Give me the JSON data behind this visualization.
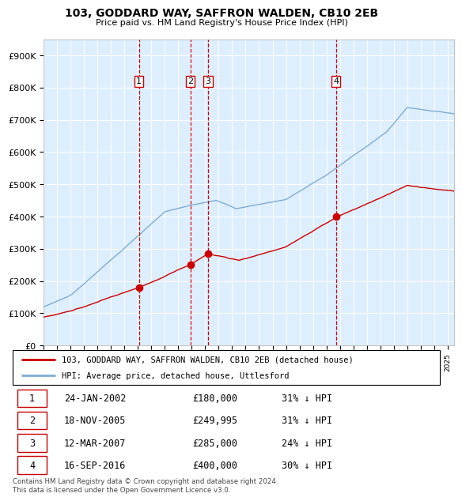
{
  "title1": "103, GODDARD WAY, SAFFRON WALDEN, CB10 2EB",
  "title2": "Price paid vs. HM Land Registry's House Price Index (HPI)",
  "plot_bg": "#ddeeff",
  "ylim": [
    0,
    950000
  ],
  "yticks": [
    0,
    100000,
    200000,
    300000,
    400000,
    500000,
    600000,
    700000,
    800000,
    900000
  ],
  "ytick_labels": [
    "£0",
    "£100K",
    "£200K",
    "£300K",
    "£400K",
    "£500K",
    "£600K",
    "£700K",
    "£800K",
    "£900K"
  ],
  "sale_dates": [
    2002.07,
    2005.89,
    2007.2,
    2016.71
  ],
  "sale_prices": [
    180000,
    249995,
    285000,
    400000
  ],
  "sale_labels": [
    "1",
    "2",
    "3",
    "4"
  ],
  "red_line_color": "#cc0000",
  "blue_line_color": "#7eadd4",
  "dashed_line_color": "#cc0000",
  "grid_color": "#ffffff",
  "legend_red_label": "103, GODDARD WAY, SAFFRON WALDEN, CB10 2EB (detached house)",
  "legend_blue_label": "HPI: Average price, detached house, Uttlesford",
  "table_rows": [
    [
      "1",
      "24-JAN-2002",
      "£180,000",
      "31% ↓ HPI"
    ],
    [
      "2",
      "18-NOV-2005",
      "£249,995",
      "31% ↓ HPI"
    ],
    [
      "3",
      "12-MAR-2007",
      "£285,000",
      "24% ↓ HPI"
    ],
    [
      "4",
      "16-SEP-2016",
      "£400,000",
      "30% ↓ HPI"
    ]
  ],
  "footer": "Contains HM Land Registry data © Crown copyright and database right 2024.\nThis data is licensed under the Open Government Licence v3.0.",
  "xmin": 1995.0,
  "xmax": 2025.5
}
